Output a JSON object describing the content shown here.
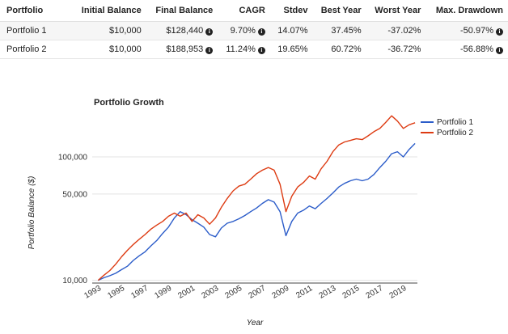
{
  "table": {
    "headers": [
      "Portfolio",
      "Initial Balance",
      "Final Balance",
      "CAGR",
      "Stdev",
      "Best Year",
      "Worst Year",
      "Max. Drawdown"
    ],
    "rows": [
      {
        "portfolio": "Portfolio 1",
        "initial": "$10,000",
        "final": "$128,440",
        "cagr": "9.70%",
        "stdev": "14.07%",
        "best": "37.45%",
        "worst": "-37.02%",
        "drawdown": "-50.97%"
      },
      {
        "portfolio": "Portfolio 2",
        "initial": "$10,000",
        "final": "$188,953",
        "cagr": "11.24%",
        "stdev": "19.65%",
        "best": "60.72%",
        "worst": "-36.72%",
        "drawdown": "-56.88%"
      }
    ],
    "info_icon": "info-circle-icon"
  },
  "chart_data": {
    "type": "line",
    "title": "Portfolio Growth",
    "xlabel": "Year",
    "ylabel": "Portfolio Balance ($)",
    "yscale": "log",
    "ylim": [
      9500,
      200000
    ],
    "xlim": [
      1992.5,
      2020.2
    ],
    "yticks": [
      10000,
      50000,
      100000
    ],
    "ytick_labels": [
      "10,000",
      "50,000",
      "100,000"
    ],
    "xticks": [
      "1993",
      "1995",
      "1997",
      "1999",
      "2001",
      "2003",
      "2005",
      "2007",
      "2009",
      "2011",
      "2013",
      "2015",
      "2017",
      "2019"
    ],
    "legend": "top-right",
    "grid": "horizontal",
    "series": [
      {
        "name": "Portfolio 1",
        "color": "#2b5cc9",
        "points": [
          [
            1993.0,
            10000
          ],
          [
            1993.5,
            10500
          ],
          [
            1994.0,
            10900
          ],
          [
            1994.5,
            11400
          ],
          [
            1995.0,
            12200
          ],
          [
            1995.5,
            13000
          ],
          [
            1996.0,
            14500
          ],
          [
            1996.5,
            15800
          ],
          [
            1997.0,
            17000
          ],
          [
            1997.5,
            19000
          ],
          [
            1998.0,
            21000
          ],
          [
            1998.5,
            24000
          ],
          [
            1999.0,
            27000
          ],
          [
            1999.5,
            32000
          ],
          [
            2000.0,
            36000
          ],
          [
            2000.5,
            34000
          ],
          [
            2001.0,
            31000
          ],
          [
            2001.5,
            29000
          ],
          [
            2002.0,
            27000
          ],
          [
            2002.5,
            23500
          ],
          [
            2003.0,
            22500
          ],
          [
            2003.5,
            26500
          ],
          [
            2004.0,
            29000
          ],
          [
            2004.5,
            30000
          ],
          [
            2005.0,
            31500
          ],
          [
            2005.5,
            33500
          ],
          [
            2006.0,
            36000
          ],
          [
            2006.5,
            38500
          ],
          [
            2007.0,
            42000
          ],
          [
            2007.5,
            45000
          ],
          [
            2008.0,
            43000
          ],
          [
            2008.5,
            36000
          ],
          [
            2009.0,
            23000
          ],
          [
            2009.5,
            30000
          ],
          [
            2010.0,
            35000
          ],
          [
            2010.5,
            37000
          ],
          [
            2011.0,
            40000
          ],
          [
            2011.5,
            38000
          ],
          [
            2012.0,
            42000
          ],
          [
            2012.5,
            46000
          ],
          [
            2013.0,
            51000
          ],
          [
            2013.5,
            57000
          ],
          [
            2014.0,
            61000
          ],
          [
            2014.5,
            64000
          ],
          [
            2015.0,
            66000
          ],
          [
            2015.5,
            64000
          ],
          [
            2016.0,
            66000
          ],
          [
            2016.5,
            72000
          ],
          [
            2017.0,
            82000
          ],
          [
            2017.5,
            92000
          ],
          [
            2018.0,
            106000
          ],
          [
            2018.5,
            110000
          ],
          [
            2019.0,
            100000
          ],
          [
            2019.5,
            115000
          ],
          [
            2020.0,
            128440
          ]
        ]
      },
      {
        "name": "Portfolio 2",
        "color": "#dd3b12",
        "points": [
          [
            1993.0,
            10000
          ],
          [
            1993.5,
            11000
          ],
          [
            1994.0,
            12000
          ],
          [
            1994.5,
            13500
          ],
          [
            1995.0,
            15500
          ],
          [
            1995.5,
            17500
          ],
          [
            1996.0,
            19500
          ],
          [
            1996.5,
            21500
          ],
          [
            1997.0,
            23500
          ],
          [
            1997.5,
            26000
          ],
          [
            1998.0,
            28000
          ],
          [
            1998.5,
            30000
          ],
          [
            1999.0,
            33000
          ],
          [
            1999.5,
            35000
          ],
          [
            2000.0,
            33000
          ],
          [
            2000.5,
            35000
          ],
          [
            2001.0,
            30000
          ],
          [
            2001.5,
            34000
          ],
          [
            2002.0,
            32000
          ],
          [
            2002.5,
            28500
          ],
          [
            2003.0,
            32000
          ],
          [
            2003.5,
            39000
          ],
          [
            2004.0,
            46000
          ],
          [
            2004.5,
            53000
          ],
          [
            2005.0,
            58000
          ],
          [
            2005.5,
            60000
          ],
          [
            2006.0,
            66000
          ],
          [
            2006.5,
            73000
          ],
          [
            2007.0,
            78000
          ],
          [
            2007.5,
            82000
          ],
          [
            2008.0,
            78000
          ],
          [
            2008.5,
            60000
          ],
          [
            2009.0,
            36000
          ],
          [
            2009.5,
            48000
          ],
          [
            2010.0,
            57000
          ],
          [
            2010.5,
            62000
          ],
          [
            2011.0,
            70000
          ],
          [
            2011.5,
            66000
          ],
          [
            2012.0,
            80000
          ],
          [
            2012.5,
            92000
          ],
          [
            2013.0,
            110000
          ],
          [
            2013.5,
            125000
          ],
          [
            2014.0,
            132000
          ],
          [
            2014.5,
            136000
          ],
          [
            2015.0,
            140000
          ],
          [
            2015.5,
            138000
          ],
          [
            2016.0,
            148000
          ],
          [
            2016.5,
            160000
          ],
          [
            2017.0,
            170000
          ],
          [
            2017.5,
            190000
          ],
          [
            2018.0,
            215000
          ],
          [
            2018.5,
            195000
          ],
          [
            2019.0,
            170000
          ],
          [
            2019.5,
            182000
          ],
          [
            2020.0,
            188953
          ]
        ]
      }
    ]
  }
}
